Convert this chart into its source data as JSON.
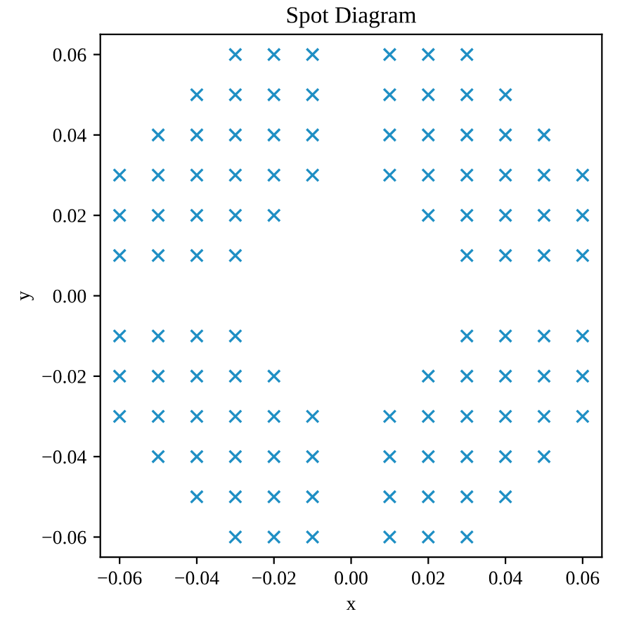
{
  "chart_data": {
    "type": "scatter",
    "title": "Spot Diagram",
    "xlabel": "x",
    "ylabel": "y",
    "series": [
      {
        "color": "#1f8fc4",
        "x": [
          -0.03,
          -0.02,
          -0.01,
          0.01,
          0.02,
          0.03,
          -0.04,
          -0.03,
          -0.02,
          -0.01,
          0.01,
          0.02,
          0.03,
          0.04,
          -0.05,
          -0.04,
          -0.03,
          -0.02,
          -0.01,
          0.01,
          0.02,
          0.03,
          0.04,
          0.05,
          -0.06,
          -0.05,
          -0.04,
          -0.03,
          -0.02,
          -0.01,
          0.01,
          0.02,
          0.03,
          0.04,
          0.05,
          0.06,
          -0.06,
          -0.05,
          -0.04,
          -0.03,
          -0.02,
          0.02,
          0.03,
          0.04,
          0.05,
          0.06,
          -0.06,
          -0.05,
          -0.04,
          -0.03,
          0.03,
          0.04,
          0.05,
          0.06,
          -0.06,
          -0.05,
          -0.04,
          -0.03,
          0.03,
          0.04,
          0.05,
          0.06,
          -0.06,
          -0.05,
          -0.04,
          -0.03,
          -0.02,
          0.02,
          0.03,
          0.04,
          0.05,
          0.06,
          -0.06,
          -0.05,
          -0.04,
          -0.03,
          -0.02,
          -0.01,
          0.01,
          0.02,
          0.03,
          0.04,
          0.05,
          0.06,
          -0.05,
          -0.04,
          -0.03,
          -0.02,
          -0.01,
          0.01,
          0.02,
          0.03,
          0.04,
          0.05,
          -0.04,
          -0.03,
          -0.02,
          -0.01,
          0.01,
          0.02,
          0.03,
          0.04,
          -0.03,
          -0.02,
          -0.01,
          0.01,
          0.02,
          0.03
        ],
        "values": [
          0.06,
          0.06,
          0.06,
          0.06,
          0.06,
          0.06,
          0.05,
          0.05,
          0.05,
          0.05,
          0.05,
          0.05,
          0.05,
          0.05,
          0.04,
          0.04,
          0.04,
          0.04,
          0.04,
          0.04,
          0.04,
          0.04,
          0.04,
          0.04,
          0.03,
          0.03,
          0.03,
          0.03,
          0.03,
          0.03,
          0.03,
          0.03,
          0.03,
          0.03,
          0.03,
          0.03,
          0.02,
          0.02,
          0.02,
          0.02,
          0.02,
          0.02,
          0.02,
          0.02,
          0.02,
          0.02,
          0.01,
          0.01,
          0.01,
          0.01,
          0.01,
          0.01,
          0.01,
          0.01,
          -0.01,
          -0.01,
          -0.01,
          -0.01,
          -0.01,
          -0.01,
          -0.01,
          -0.01,
          -0.02,
          -0.02,
          -0.02,
          -0.02,
          -0.02,
          -0.02,
          -0.02,
          -0.02,
          -0.02,
          -0.02,
          -0.03,
          -0.03,
          -0.03,
          -0.03,
          -0.03,
          -0.03,
          -0.03,
          -0.03,
          -0.03,
          -0.03,
          -0.03,
          -0.03,
          -0.04,
          -0.04,
          -0.04,
          -0.04,
          -0.04,
          -0.04,
          -0.04,
          -0.04,
          -0.04,
          -0.04,
          -0.05,
          -0.05,
          -0.05,
          -0.05,
          -0.05,
          -0.05,
          -0.05,
          -0.05,
          -0.06,
          -0.06,
          -0.06,
          -0.06,
          -0.06,
          -0.06
        ]
      }
    ],
    "marker": "cross",
    "grid": false,
    "legend": false,
    "xlim": [
      -0.065,
      0.065
    ],
    "ylim": [
      -0.065,
      0.065
    ],
    "xticks": [
      {
        "value": -0.06,
        "label": "−0.06"
      },
      {
        "value": -0.04,
        "label": "−0.04"
      },
      {
        "value": -0.02,
        "label": "−0.02"
      },
      {
        "value": 0,
        "label": "0.00"
      },
      {
        "value": 0.02,
        "label": "0.02"
      },
      {
        "value": 0.04,
        "label": "0.04"
      },
      {
        "value": 0.06,
        "label": "0.06"
      }
    ],
    "yticks": [
      {
        "value": -0.06,
        "label": "−0.06"
      },
      {
        "value": -0.04,
        "label": "−0.04"
      },
      {
        "value": -0.02,
        "label": "−0.02"
      },
      {
        "value": 0,
        "label": "0.00"
      },
      {
        "value": 0.02,
        "label": "0.02"
      },
      {
        "value": 0.04,
        "label": "0.04"
      },
      {
        "value": 0.06,
        "label": "0.06"
      }
    ]
  }
}
